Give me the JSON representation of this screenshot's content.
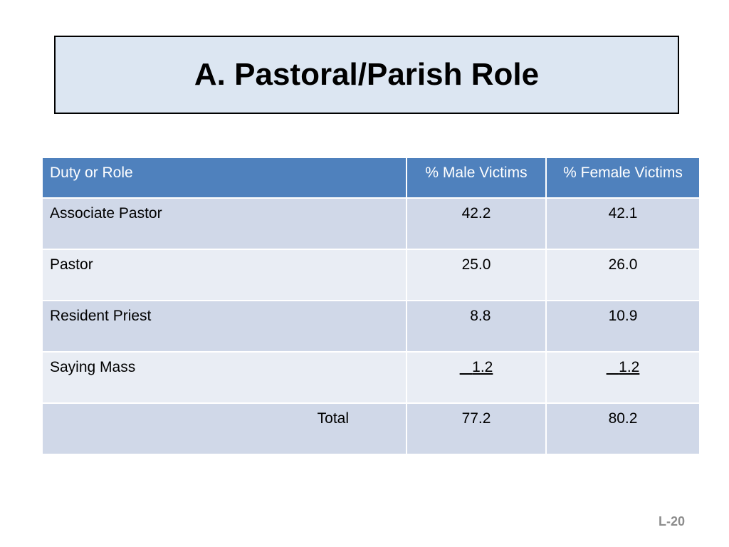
{
  "slide": {
    "title": "A.  Pastoral/Parish Role",
    "page_number": "L-20"
  },
  "table": {
    "headers": [
      "Duty or Role",
      "% Male Victims",
      "% Female Victims"
    ],
    "rows": [
      {
        "role": "Associate Pastor",
        "male": "42.2",
        "female": "42.1"
      },
      {
        "role": "Pastor",
        "male": "25.0",
        "female": "26.0"
      },
      {
        "role": "Resident Priest",
        "male": "8.8",
        "female": "10.9"
      },
      {
        "role": "Saying Mass",
        "male": "1.2",
        "female": "1.2"
      },
      {
        "role": "Total",
        "male": "77.2",
        "female": "80.2"
      }
    ]
  },
  "colors": {
    "title_background": "#dce6f2",
    "header_background": "#4f81bd",
    "row_band_dark": "#d0d8e8",
    "row_band_light": "#e9edf4"
  }
}
